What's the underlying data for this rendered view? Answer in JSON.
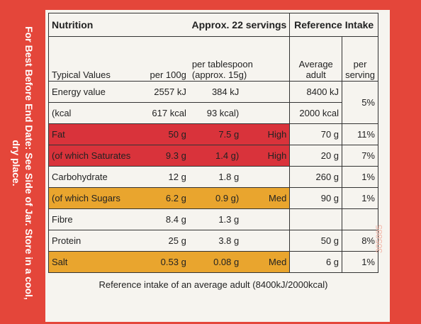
{
  "side_note": "For Best Before End Date: See Side of Jar. Store in a cool, dry place.",
  "code": "305885",
  "header": {
    "title": "Nutrition",
    "servings": "Approx. 22 servings",
    "reference": "Reference Intake"
  },
  "columns": {
    "typical": "Typical Values",
    "per100g": "per 100g",
    "per_portion": "per tablespoon (approx. 15g)",
    "ri": "Average adult",
    "ri_percent": "per serving"
  },
  "rows": [
    {
      "label": "Energy value",
      "per100g": "2557 kJ",
      "per_portion": "384 kJ",
      "ri": "8400 kJ",
      "ri_percent": "5%"
    },
    {
      "label": "(kcal",
      "per100g": "617 kcal",
      "per_portion": "93 kcal)",
      "ri": "2000 kcal"
    },
    {
      "label": "Fat",
      "per100g": "50 g",
      "per_portion": "7.5 g",
      "level": "High",
      "ri": "70 g",
      "ri_percent": "11%"
    },
    {
      "label": "(of which Saturates",
      "per100g": "9.3 g",
      "per_portion": "1.4 g)",
      "level": "High",
      "ri": "20 g",
      "ri_percent": "7%"
    },
    {
      "label": "Carbohydrate",
      "per100g": "12 g",
      "per_portion": "1.8 g",
      "ri": "260 g",
      "ri_percent": "1%"
    },
    {
      "label": "(of which Sugars",
      "per100g": "6.2 g",
      "per_portion": "0.9 g)",
      "level": "Med",
      "ri": "90 g",
      "ri_percent": "1%"
    },
    {
      "label": "Fibre",
      "per100g": "8.4 g",
      "per_portion": "1.3 g"
    },
    {
      "label": "Protein",
      "per100g": "25 g",
      "per_portion": "3.8 g",
      "ri": "50 g",
      "ri_percent": "8%"
    },
    {
      "label": "Salt",
      "per100g": "0.53 g",
      "per_portion": "0.08 g",
      "level": "Med",
      "ri": "6 g",
      "ri_percent": "1%"
    }
  ],
  "footer": "Reference intake of an average adult (8400kJ/2000kcal)"
}
